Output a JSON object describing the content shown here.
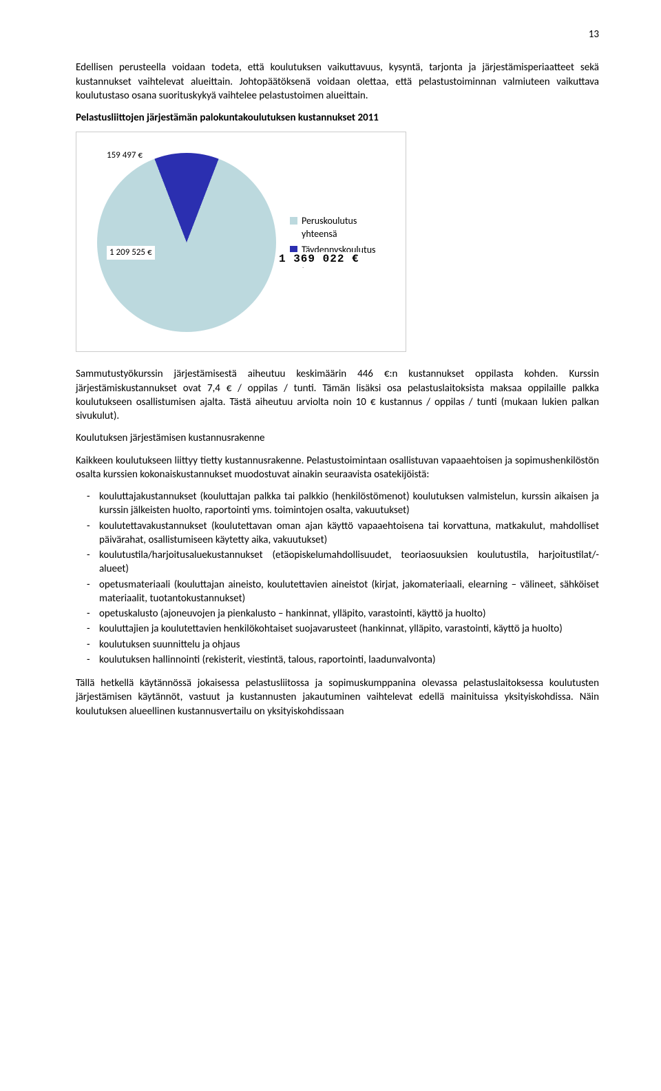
{
  "page_number": "13",
  "para1": "Edellisen perusteella voidaan todeta, että koulutuksen vaikuttavuus, kysyntä, tarjonta ja järjestämisperiaatteet sekä kustannukset vaihtelevat alueittain. Johtopäätöksenä voidaan olettaa, että pelastustoiminnan valmiuteen vaikuttava koulutustaso osana suorituskykyä vaihtelee pelastustoimen alueittain.",
  "chart_title": "Pelastusliittojen järjestämän palokuntakoulutuksen kustannukset 2011",
  "chart": {
    "type": "pie",
    "slices": [
      {
        "label": "Peruskoulutus yhteensä",
        "value": 1209525,
        "display": "1 209 525 €",
        "color": "#bcd9de"
      },
      {
        "label": "Täydennyskoulutus yhteensä",
        "value": 159497,
        "display": "159 497 €",
        "color": "#2b2fb0"
      }
    ],
    "total_display": "1 369 022 €",
    "background_color": "#ffffff",
    "border_color": "#cccccc",
    "label_bg": "#ffffff",
    "label_fontsize": 13,
    "legend_fontsize": 14,
    "legend_sq_light": "#bcd9de",
    "legend_sq_dark": "#2b2fb0",
    "slice_angle_deg": 42
  },
  "legend": {
    "item1_main": "Peruskoulutus",
    "item1_sub": "yhteensä",
    "item2_main": "Täydennyskoulutus",
    "item2_sub": "yhteensä"
  },
  "para2": "Sammutustyökurssin järjestämisestä aiheutuu keskimäärin 446 €:n kustannukset oppilasta kohden. Kurssin järjestämiskustannukset ovat 7,4 € / oppilas / tunti. Tämän lisäksi osa pelastuslaitoksista maksaa oppilaille palkka koulutukseen osallistumisen ajalta. Tästä aiheutuu arviolta noin 10 € kustannus / oppilas / tunti (mukaan lukien palkan sivukulut).",
  "subhead1": "Koulutuksen järjestämisen kustannusrakenne",
  "para3": "Kaikkeen koulutukseen liittyy tietty kustannusrakenne. Pelastustoimintaan osallistuvan vapaaehtoisen ja sopimushenkilöstön osalta kurssien kokonaiskustannukset muodostuvat ainakin seuraavista osatekijöistä:",
  "bullets": [
    "kouluttajakustannukset (kouluttajan palkka tai palkkio (henkilöstömenot) koulutuksen valmistelun, kurssin aikaisen ja kurssin jälkeisten huolto, raportointi yms. toimintojen osalta, vakuutukset)",
    "koulutettavakustannukset (koulutettavan oman ajan käyttö vapaaehtoisena tai korvattuna, matkakulut, mahdolliset päivärahat, osallistumiseen käytetty aika, vakuutukset)",
    "koulutustila/harjoitusaluekustannukset (etäopiskelumahdollisuudet, teoriaosuuksien koulutustila, harjoitustilat/-alueet)",
    "opetusmateriaali (kouluttajan aineisto, koulutettavien aineistot (kirjat, jakomateriaali, elearning – välineet, sähköiset materiaalit, tuotantokustannukset)",
    "opetuskalusto (ajoneuvojen ja pienkalusto – hankinnat, ylläpito, varastointi, käyttö ja huolto)",
    "kouluttajien ja koulutettavien henkilökohtaiset suojavarusteet (hankinnat, ylläpito, varastointi, käyttö ja huolto)",
    "koulutuksen suunnittelu ja ohjaus",
    "koulutuksen hallinnointi (rekisterit, viestintä, talous, raportointi, laadunvalvonta)"
  ],
  "para4": "Tällä hetkellä käytännössä jokaisessa pelastusliitossa ja sopimuskumppanina olevassa pelastuslaitoksessa koulutusten järjestämisen käytännöt, vastuut ja kustannusten jakautuminen vaihtelevat edellä mainituissa yksityiskohdissa. Näin koulutuksen alueellinen kustannusvertailu on yksityiskohdissaan"
}
